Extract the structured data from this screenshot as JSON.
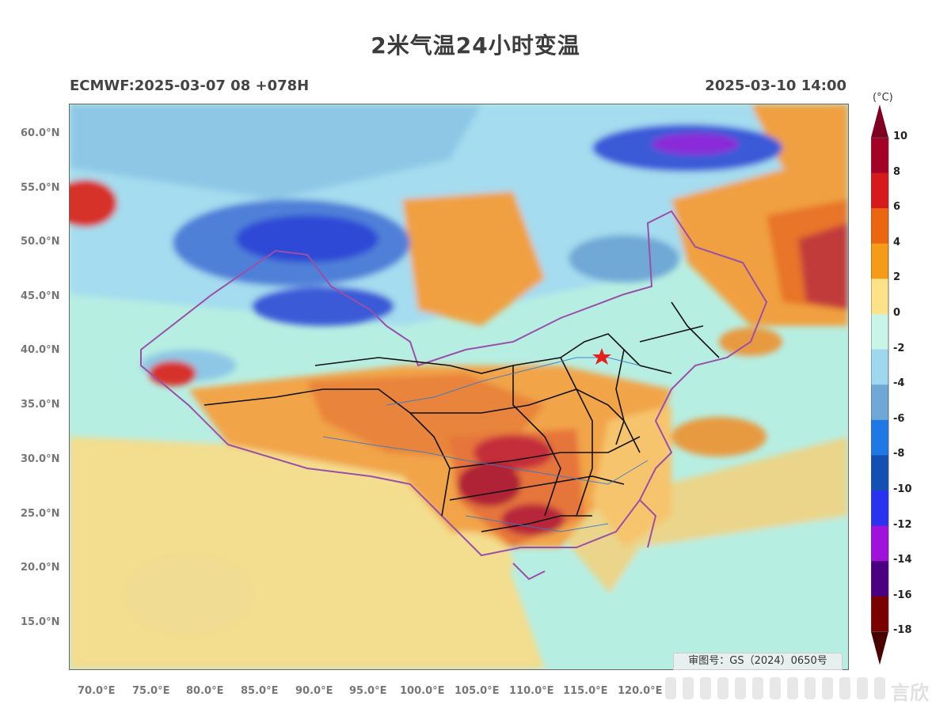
{
  "header": {
    "title": "2米气温24小时变温",
    "model_run": "ECMWF:2025-03-07 08 +078H",
    "valid_time": "2025-03-10 14:00"
  },
  "map": {
    "lat_ticks": [
      "60.0°N",
      "55.0°N",
      "50.0°N",
      "45.0°N",
      "40.0°N",
      "35.0°N",
      "30.0°N",
      "25.0°N",
      "20.0°N",
      "15.0°N"
    ],
    "lon_ticks": [
      "70.0°E",
      "75.0°E",
      "80.0°E",
      "85.0°E",
      "90.0°E",
      "95.0°E",
      "100.0°E",
      "105.0°E",
      "110.0°E",
      "115.0°E",
      "120.0°E"
    ],
    "approval_number": "审图号：GS（2024）0650号",
    "capital_marker": "star"
  },
  "colorbar": {
    "unit": "(°C)",
    "levels": [
      "10",
      "8",
      "6",
      "4",
      "2",
      "0",
      "-2",
      "-4",
      "-6",
      "-8",
      "-10",
      "-12",
      "-14",
      "-16",
      "-18"
    ],
    "colors": [
      "#a50026",
      "#d7191c",
      "#ec6610",
      "#f59b18",
      "#fde28a",
      "#c8f5e8",
      "#9fd7ee",
      "#6fa8d6",
      "#1e78e6",
      "#1450b4",
      "#2832f0",
      "#a012dc",
      "#4b0082",
      "#7a0000"
    ],
    "top_triangle_color": "#7f0022",
    "bottom_triangle_color": "#4a0000"
  },
  "watermark": {
    "text": "言欣"
  }
}
